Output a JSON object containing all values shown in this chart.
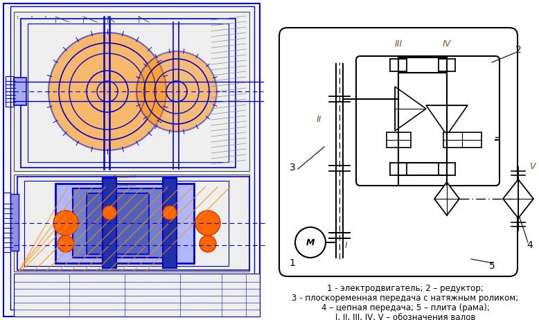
{
  "background_color": "#ffffff",
  "lc": "#0000cd",
  "oc": "#ff8c00",
  "sc": "#000000",
  "rc": "#8b4513",
  "caption_lines": [
    "1 - электродвигатель; 2 – редуктор;",
    "3 - плоскоременная передача с натяжным роликом;",
    "4 – цепная передача; 5 – плита (рама);",
    "I, II, III, IV, V – обозначения валов"
  ]
}
